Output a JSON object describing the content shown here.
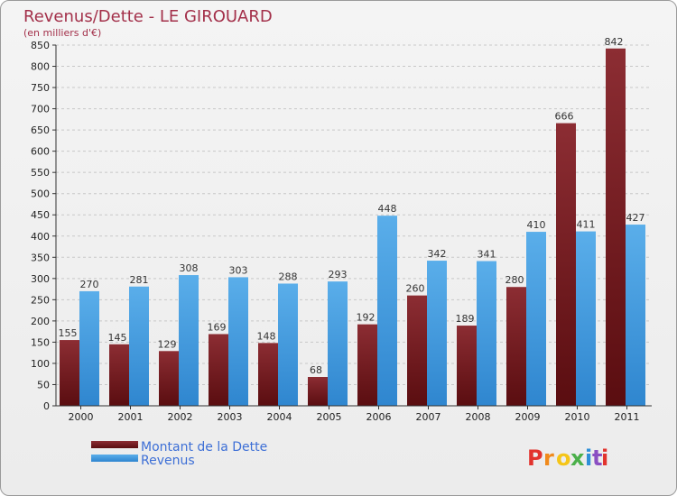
{
  "chart_data": {
    "type": "bar",
    "title": "Revenus/Dette - LE GIROUARD",
    "subtitle": "(en milliers d'€)",
    "categories": [
      "2000",
      "2001",
      "2002",
      "2003",
      "2004",
      "2005",
      "2006",
      "2007",
      "2008",
      "2009",
      "2010",
      "2011"
    ],
    "series": [
      {
        "name": "Montant de la Dette",
        "color": "#7a1c1f",
        "values": [
          155,
          145,
          129,
          169,
          148,
          68,
          192,
          260,
          189,
          280,
          666,
          842
        ]
      },
      {
        "name": "Revenus",
        "color": "#4fa3e3",
        "values": [
          270,
          281,
          308,
          303,
          288,
          293,
          448,
          342,
          341,
          410,
          411,
          427
        ]
      }
    ],
    "ylim": [
      0,
      850
    ],
    "ytick_step": 50,
    "grid": true,
    "legend_position": "bottom-left"
  },
  "logo": {
    "text": "Proxiti",
    "colors": [
      "#e2332e",
      "#f08a1c",
      "#f5c518",
      "#4bb04a",
      "#2e8fd8",
      "#8a4fc2",
      "#e2332e"
    ]
  }
}
